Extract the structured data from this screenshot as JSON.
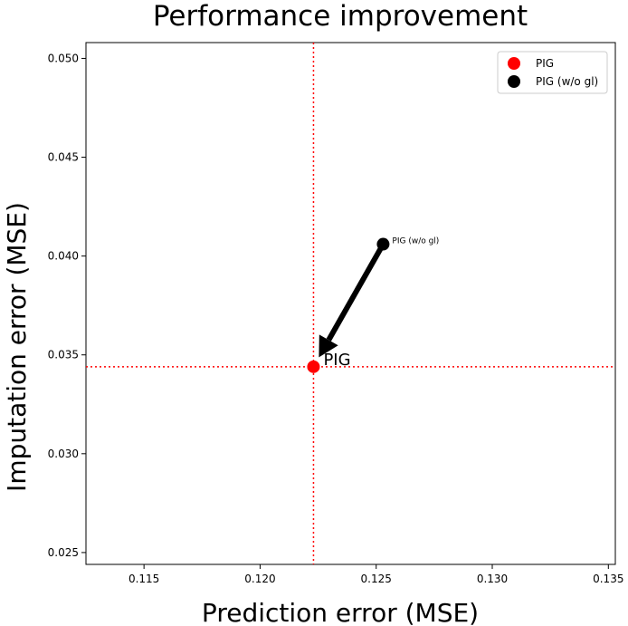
{
  "chart_data": {
    "type": "scatter",
    "title": "Performance improvement",
    "xlabel": "Prediction error (MSE)",
    "ylabel": "Imputation error (MSE)",
    "xlim": [
      0.1125,
      0.1353
    ],
    "ylim": [
      0.0244,
      0.0508
    ],
    "xticks": [
      "0.115",
      "0.120",
      "0.125",
      "0.130",
      "0.135"
    ],
    "yticks": [
      "0.025",
      "0.030",
      "0.035",
      "0.040",
      "0.045",
      "0.050"
    ],
    "grid": false,
    "legend_position": "top-right",
    "series": [
      {
        "name": "PIG",
        "color": "#ff0000",
        "points": [
          {
            "x": 0.1223,
            "y": 0.0344
          }
        ]
      },
      {
        "name": "PIG (w/o gl)",
        "color": "#000000",
        "points": [
          {
            "x": 0.1253,
            "y": 0.0406
          }
        ]
      }
    ],
    "annotations": [
      {
        "text": "PIG (w/o gl)",
        "x": 0.1253,
        "y": 0.0406,
        "size": "small"
      },
      {
        "text": "PIG",
        "x": 0.1223,
        "y": 0.0344,
        "size": "large"
      }
    ],
    "arrow": {
      "from": {
        "x": 0.1253,
        "y": 0.0406
      },
      "to": {
        "x": 0.1223,
        "y": 0.0344
      },
      "color": "#000000"
    },
    "reference_lines": {
      "x": 0.1223,
      "y": 0.0344,
      "color": "#ff0000",
      "style": "dotted"
    }
  }
}
